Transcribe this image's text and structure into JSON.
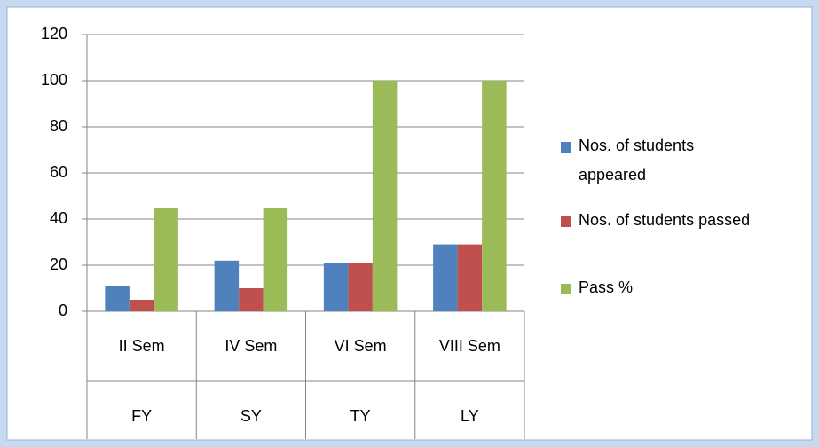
{
  "chart_data": {
    "type": "bar",
    "categories": [
      "II Sem",
      "IV Sem",
      "VI Sem",
      "VIII Sem"
    ],
    "category_groups": [
      "FY",
      "SY",
      "TY",
      "LY"
    ],
    "series": [
      {
        "name": "Nos. of students appeared",
        "color": "#4f81bd",
        "values": [
          11,
          22,
          21,
          29
        ]
      },
      {
        "name": "Nos. of students passed",
        "color": "#c0504d",
        "values": [
          5,
          10,
          21,
          29
        ]
      },
      {
        "name": "Pass %",
        "color": "#9bbb59",
        "values": [
          45,
          45,
          100,
          100
        ]
      }
    ],
    "ylim": [
      0,
      120
    ],
    "yticks": [
      0,
      20,
      40,
      60,
      80,
      100,
      120
    ],
    "grid": true,
    "legend": "right"
  }
}
